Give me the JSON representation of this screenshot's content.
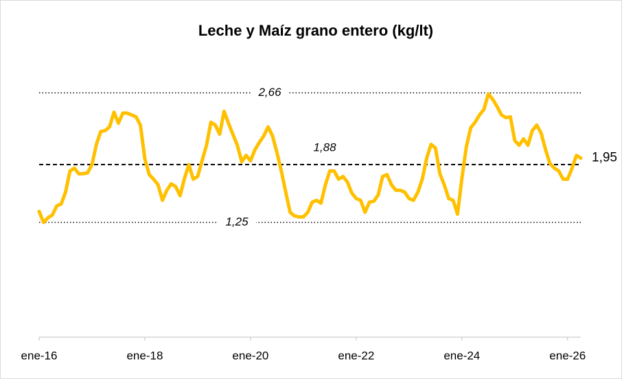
{
  "chart_data": {
    "type": "line",
    "title": "Leche y Maíz grano entero (kg/lt)",
    "categories": [
      "ene-16",
      null,
      null,
      null,
      null,
      null,
      null,
      null,
      null,
      null,
      null,
      null,
      null,
      null,
      null,
      null,
      null,
      null,
      null,
      null,
      null,
      null,
      null,
      null,
      "ene-18",
      null,
      null,
      null,
      null,
      null,
      null,
      null,
      null,
      null,
      null,
      null,
      null,
      null,
      null,
      null,
      null,
      null,
      null,
      null,
      null,
      null,
      null,
      null,
      "ene-20",
      null,
      null,
      null,
      null,
      null,
      null,
      null,
      null,
      null,
      null,
      null,
      null,
      null,
      null,
      null,
      null,
      null,
      null,
      null,
      null,
      null,
      null,
      null,
      "ene-22",
      null,
      null,
      null,
      null,
      null,
      null,
      null,
      null,
      null,
      null,
      null,
      null,
      null,
      null,
      null,
      null,
      null,
      null,
      null,
      null,
      null,
      null,
      null,
      "ene-24",
      null,
      null,
      null,
      null,
      null,
      null,
      null,
      null,
      null,
      null,
      null,
      null,
      null,
      null,
      null,
      null,
      null,
      null,
      null,
      null,
      null,
      null,
      null,
      "ene-26",
      null,
      null,
      null
    ],
    "series": [
      {
        "color": "#ffc000",
        "values": [
          1.37,
          1.25,
          1.3,
          1.33,
          1.43,
          1.45,
          1.58,
          1.81,
          1.84,
          1.78,
          1.78,
          1.79,
          1.88,
          2.1,
          2.24,
          2.25,
          2.29,
          2.45,
          2.33,
          2.44,
          2.44,
          2.42,
          2.4,
          2.31,
          1.94,
          1.77,
          1.72,
          1.66,
          1.49,
          1.6,
          1.67,
          1.64,
          1.54,
          1.73,
          1.88,
          1.72,
          1.75,
          1.92,
          2.09,
          2.34,
          2.31,
          2.21,
          2.46,
          2.33,
          2.21,
          2.09,
          1.91,
          1.98,
          1.92,
          2.04,
          2.12,
          2.19,
          2.29,
          2.19,
          2.01,
          1.81,
          1.58,
          1.36,
          1.32,
          1.31,
          1.31,
          1.36,
          1.47,
          1.49,
          1.46,
          1.66,
          1.81,
          1.81,
          1.72,
          1.75,
          1.69,
          1.57,
          1.51,
          1.49,
          1.36,
          1.47,
          1.48,
          1.55,
          1.75,
          1.77,
          1.66,
          1.6,
          1.6,
          1.58,
          1.51,
          1.49,
          1.58,
          1.72,
          1.95,
          2.1,
          2.06,
          1.78,
          1.66,
          1.51,
          1.49,
          1.34,
          1.73,
          2.07,
          2.28,
          2.34,
          2.42,
          2.48,
          2.65,
          2.59,
          2.51,
          2.42,
          2.39,
          2.4,
          2.14,
          2.09,
          2.16,
          2.09,
          2.25,
          2.31,
          2.22,
          2.04,
          1.89,
          1.84,
          1.81,
          1.72,
          1.72,
          1.84,
          1.98,
          1.95
        ]
      }
    ],
    "ylim": [
      0,
      3
    ],
    "reference_lines": [
      {
        "value": 2.66,
        "label": "2,66",
        "style": "dotted"
      },
      {
        "value": 1.88,
        "label": "1,88",
        "style": "dashed"
      },
      {
        "value": 1.25,
        "label": "1,25",
        "style": "dotted"
      }
    ],
    "end_label": {
      "value": 1.95,
      "label": "1,95"
    }
  }
}
